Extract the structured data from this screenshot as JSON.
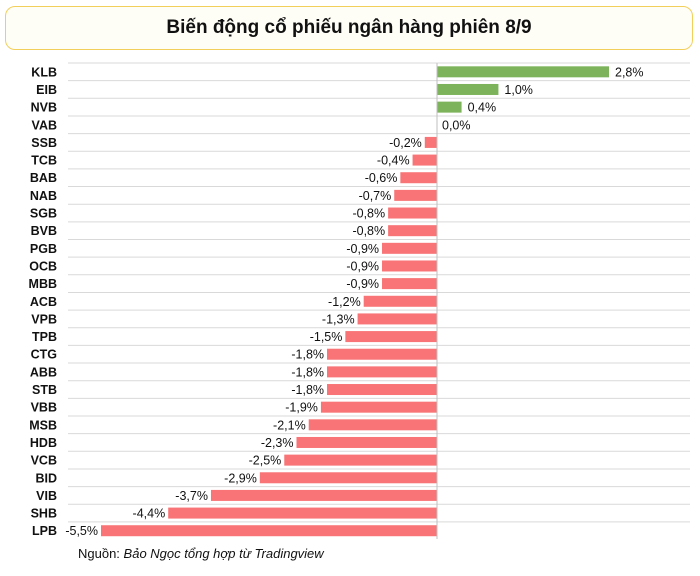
{
  "chart_data": {
    "type": "bar",
    "orientation": "horizontal",
    "title": "Biến động cổ phiếu ngân hàng phiên 8/9",
    "categories": [
      "KLB",
      "EIB",
      "NVB",
      "VAB",
      "SSB",
      "TCB",
      "BAB",
      "NAB",
      "SGB",
      "BVB",
      "PGB",
      "OCB",
      "MBB",
      "ACB",
      "VPB",
      "TPB",
      "CTG",
      "ABB",
      "STB",
      "VBB",
      "MSB",
      "HDB",
      "VCB",
      "BID",
      "VIB",
      "SHB",
      "LPB"
    ],
    "values": [
      2.8,
      1.0,
      0.4,
      0.0,
      -0.2,
      -0.4,
      -0.6,
      -0.7,
      -0.8,
      -0.8,
      -0.9,
      -0.9,
      -0.9,
      -1.2,
      -1.3,
      -1.5,
      -1.8,
      -1.8,
      -1.8,
      -1.9,
      -2.1,
      -2.3,
      -2.5,
      -2.9,
      -3.7,
      -4.4,
      -5.5
    ],
    "value_labels": [
      "2,8%",
      "1,0%",
      "0,4%",
      "0,0%",
      "-0,2%",
      "-0,4%",
      "-0,6%",
      "-0,7%",
      "-0,8%",
      "-0,8%",
      "-0,9%",
      "-0,9%",
      "-0,9%",
      "-1,2%",
      "-1,3%",
      "-1,5%",
      "-1,8%",
      "-1,8%",
      "-1,8%",
      "-1,9%",
      "-2,1%",
      "-2,3%",
      "-2,5%",
      "-2,9%",
      "-3,7%",
      "-4,4%",
      "-5,5%"
    ],
    "xlim": [
      -5.5,
      2.8
    ],
    "grid": "horizontal",
    "colors": {
      "positive": "#7db45b",
      "negative": "#f87476",
      "grid": "#d9d9d9",
      "axis": "#bfbfbf",
      "title_border": "#f2cf5b"
    }
  },
  "source": {
    "prefix": "Nguồn: ",
    "text": "Bảo Ngọc tổng hợp từ Tradingview"
  }
}
